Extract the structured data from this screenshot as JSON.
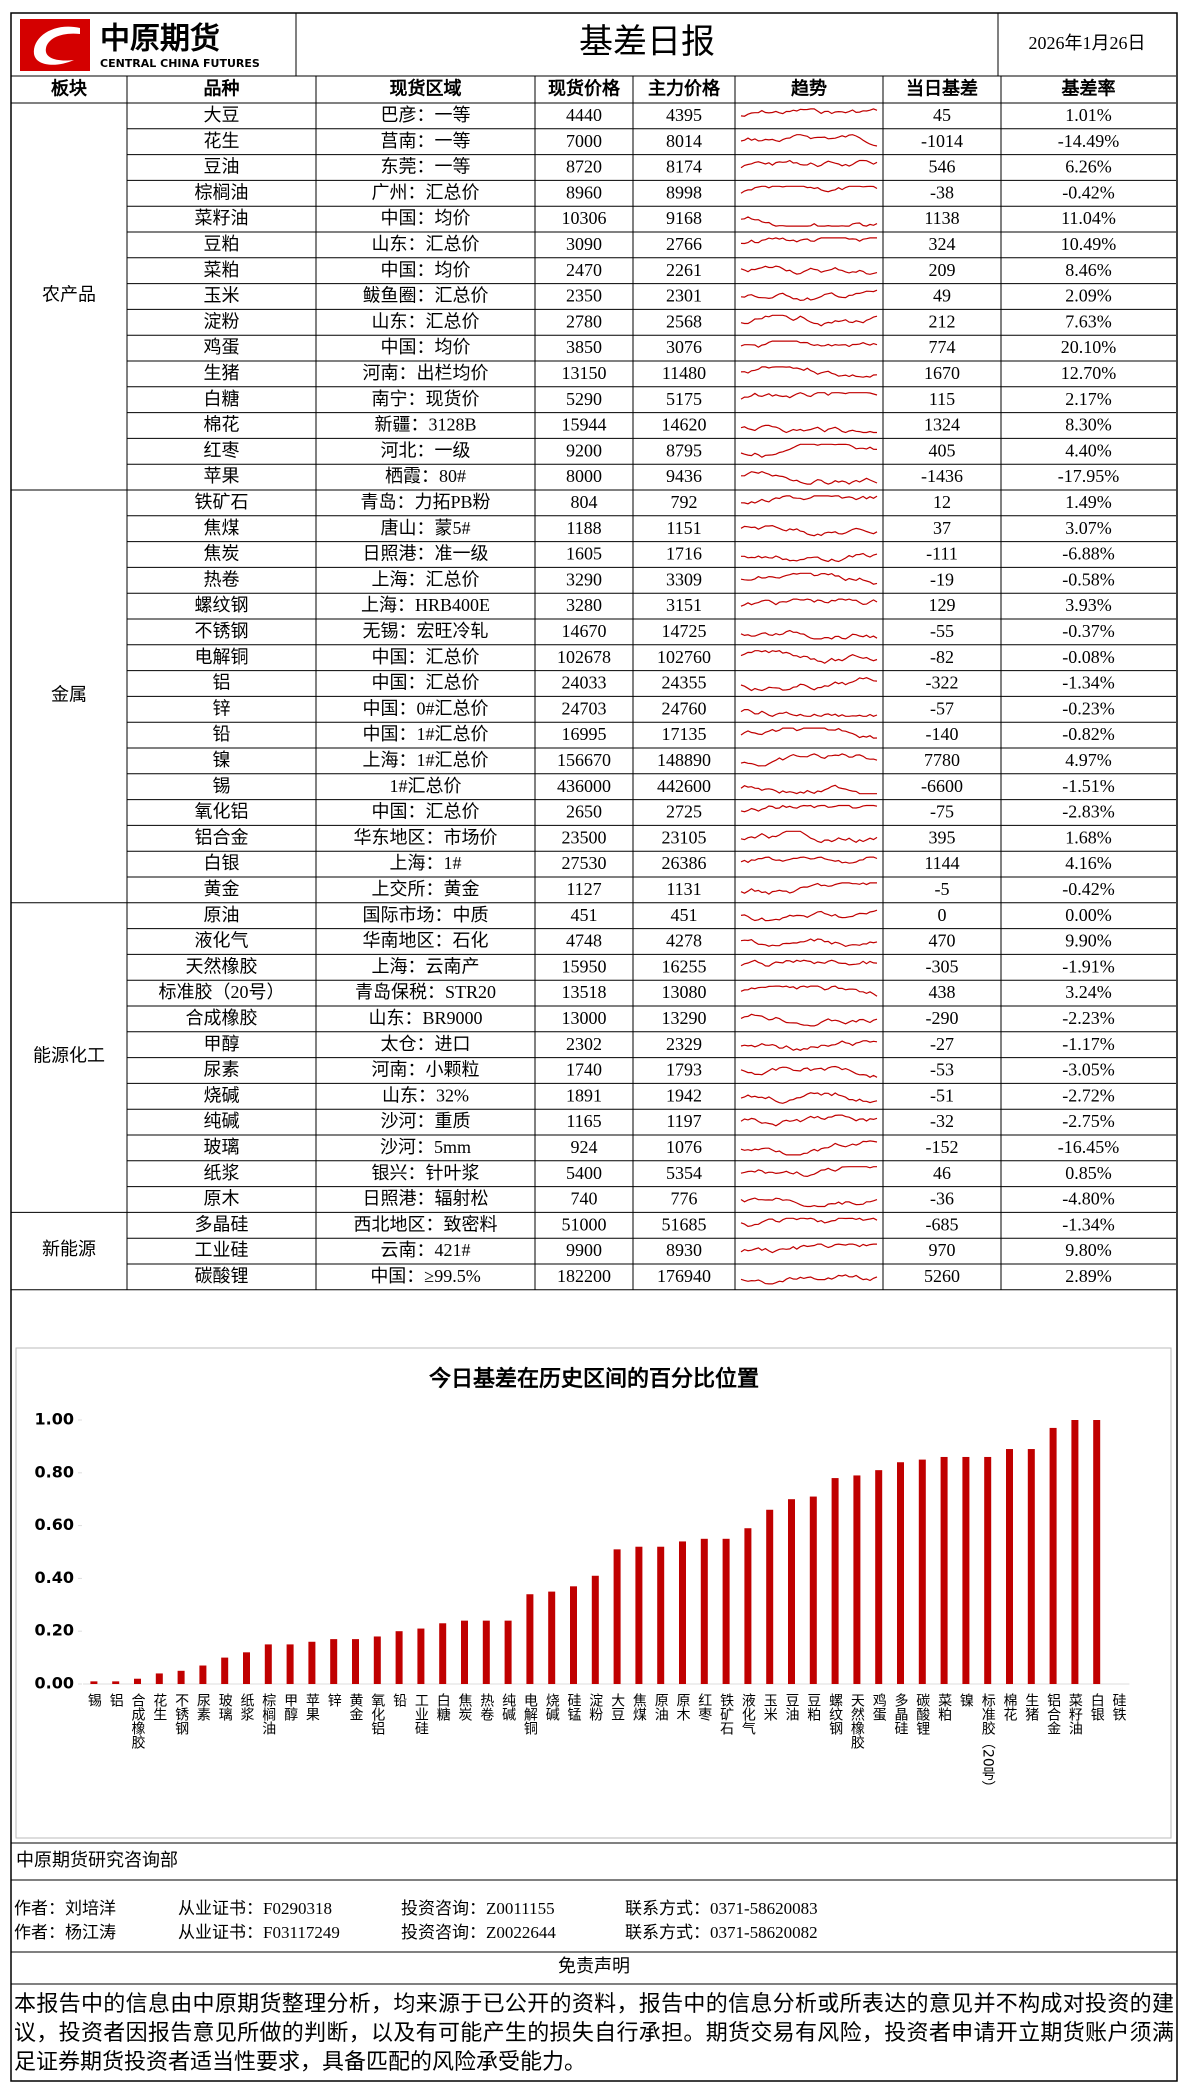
{
  "header": {
    "logo_cn": "中原期货",
    "logo_en": "CENTRAL CHINA FUTURES",
    "title": "基差日报",
    "date": "2026年1月26日"
  },
  "table": {
    "header": [
      "板块",
      "品种",
      "现货区域",
      "现货价格",
      "主力价格",
      "趋势",
      "当日基差",
      "基差率"
    ],
    "groups": [
      {
        "name": "农产品",
        "rows": [
          [
            "大豆",
            "巴彦：一等",
            4440,
            4395,
            45,
            "1.01%"
          ],
          [
            "花生",
            "莒南：一等",
            7000,
            8014,
            -1014,
            "-14.49%"
          ],
          [
            "豆油",
            "东莞：一等",
            8720,
            8174,
            546,
            "6.26%"
          ],
          [
            "棕榈油",
            "广州：汇总价",
            8960,
            8998,
            -38,
            "-0.42%"
          ],
          [
            "菜籽油",
            "中国：均价",
            10306,
            9168,
            1138,
            "11.04%"
          ],
          [
            "豆粕",
            "山东：汇总价",
            3090,
            2766,
            324,
            "10.49%"
          ],
          [
            "菜粕",
            "中国：均价",
            2470,
            2261,
            209,
            "8.46%"
          ],
          [
            "玉米",
            "鲅鱼圈：汇总价",
            2350,
            2301,
            49,
            "2.09%"
          ],
          [
            "淀粉",
            "山东：汇总价",
            2780,
            2568,
            212,
            "7.63%"
          ],
          [
            "鸡蛋",
            "中国：均价",
            3850,
            3076,
            774,
            "20.10%"
          ],
          [
            "生猪",
            "河南：出栏均价",
            13150,
            11480,
            1670,
            "12.70%"
          ],
          [
            "白糖",
            "南宁：现货价",
            5290,
            5175,
            115,
            "2.17%"
          ],
          [
            "棉花",
            "新疆：3128B",
            15944,
            14620,
            1324,
            "8.30%"
          ],
          [
            "红枣",
            "河北：一级",
            9200,
            8795,
            405,
            "4.40%"
          ],
          [
            "苹果",
            "栖霞：80#",
            8000,
            9436,
            -1436,
            "-17.95%"
          ]
        ]
      },
      {
        "name": "金属",
        "rows": [
          [
            "铁矿石",
            "青岛：力拓PB粉",
            804,
            792,
            12,
            "1.49%"
          ],
          [
            "焦煤",
            "唐山：蒙5#",
            1188,
            1151,
            37,
            "3.07%"
          ],
          [
            "焦炭",
            "日照港：准一级",
            1605,
            1716,
            -111,
            "-6.88%"
          ],
          [
            "热卷",
            "上海：汇总价",
            3290,
            3309,
            -19,
            "-0.58%"
          ],
          [
            "螺纹钢",
            "上海：HRB400E",
            3280,
            3151,
            129,
            "3.93%"
          ],
          [
            "不锈钢",
            "无锡：宏旺冷轧",
            14670,
            14725,
            -55,
            "-0.37%"
          ],
          [
            "电解铜",
            "中国：汇总价",
            102678,
            102760,
            -82,
            "-0.08%"
          ],
          [
            "铝",
            "中国：汇总价",
            24033,
            24355,
            -322,
            "-1.34%"
          ],
          [
            "锌",
            "中国：0#汇总价",
            24703,
            24760,
            -57,
            "-0.23%"
          ],
          [
            "铅",
            "中国：1#汇总价",
            16995,
            17135,
            -140,
            "-0.82%"
          ],
          [
            "镍",
            "上海：1#汇总价",
            156670,
            148890,
            7780,
            "4.97%"
          ],
          [
            "锡",
            "1#汇总价",
            436000,
            442600,
            -6600,
            "-1.51%"
          ],
          [
            "氧化铝",
            "中国：汇总价",
            2650,
            2725,
            -75,
            "-2.83%"
          ],
          [
            "铝合金",
            "华东地区：市场价",
            23500,
            23105,
            395,
            "1.68%"
          ],
          [
            "白银",
            "上海：1#",
            27530,
            26386,
            1144,
            "4.16%"
          ],
          [
            "黄金",
            "上交所：黄金",
            1127,
            1131,
            -5,
            "-0.42%"
          ]
        ]
      },
      {
        "name": "能源化工",
        "rows": [
          [
            "原油",
            "国际市场：中质",
            451,
            451,
            0,
            "0.00%"
          ],
          [
            "液化气",
            "华南地区：石化",
            4748,
            4278,
            470,
            "9.90%"
          ],
          [
            "天然橡胶",
            "上海：云南产",
            15950,
            16255,
            -305,
            "-1.91%"
          ],
          [
            "标准胶（20号）",
            "青岛保税：STR20",
            13518,
            13080,
            438,
            "3.24%"
          ],
          [
            "合成橡胶",
            "山东：BR9000",
            13000,
            13290,
            -290,
            "-2.23%"
          ],
          [
            "甲醇",
            "太仓：进口",
            2302,
            2329,
            -27,
            "-1.17%"
          ],
          [
            "尿素",
            "河南：小颗粒",
            1740,
            1793,
            -53,
            "-3.05%"
          ],
          [
            "烧碱",
            "山东：32%",
            1891,
            1942,
            -51,
            "-2.72%"
          ],
          [
            "纯碱",
            "沙河：重质",
            1165,
            1197,
            -32,
            "-2.75%"
          ],
          [
            "玻璃",
            "沙河：5mm",
            924,
            1076,
            -152,
            "-16.45%"
          ],
          [
            "纸浆",
            "银兴：针叶浆",
            5400,
            5354,
            46,
            "0.85%"
          ],
          [
            "原木",
            "日照港：辐射松",
            740,
            776,
            -36,
            "-4.80%"
          ]
        ]
      },
      {
        "name": "新能源",
        "rows": [
          [
            "多晶硅",
            "西北地区：致密料",
            51000,
            51685,
            -685,
            "-1.34%"
          ],
          [
            "工业硅",
            "云南：421#",
            9900,
            8930,
            970,
            "9.80%"
          ],
          [
            "碳酸锂",
            "中国：≥99.5%",
            182200,
            176940,
            5260,
            "2.89%"
          ]
        ]
      }
    ]
  },
  "chart_data": {
    "type": "bar",
    "title": "今日基差在历史区间的百分比位置",
    "categories": [
      "锡",
      "铝",
      "合成橡胶",
      "花生",
      "不锈钢",
      "尿素",
      "玻璃",
      "纸浆",
      "棕榈油",
      "甲醇",
      "苹果",
      "锌",
      "黄金",
      "氧化铝",
      "铅",
      "工业硅",
      "白糖",
      "焦炭",
      "热卷",
      "纯碱",
      "电解铜",
      "烧碱",
      "硅锰",
      "淀粉",
      "大豆",
      "焦煤",
      "原油",
      "原木",
      "红枣",
      "铁矿石",
      "液化气",
      "玉米",
      "豆油",
      "豆粕",
      "螺纹钢",
      "天然橡胶",
      "鸡蛋",
      "多晶硅",
      "碳酸锂",
      "菜粕",
      "镍",
      "标准胶（20号）",
      "棉花",
      "生猪",
      "铝合金",
      "菜籽油",
      "白银",
      "硅铁"
    ],
    "values": [
      0.01,
      0.01,
      0.02,
      0.04,
      0.05,
      0.07,
      0.1,
      0.12,
      0.15,
      0.15,
      0.16,
      0.17,
      0.17,
      0.18,
      0.2,
      0.21,
      0.23,
      0.24,
      0.24,
      0.24,
      0.34,
      0.35,
      0.37,
      0.41,
      0.51,
      0.52,
      0.52,
      0.54,
      0.55,
      0.55,
      0.59,
      0.66,
      0.7,
      0.71,
      0.78,
      0.79,
      0.81,
      0.84,
      0.85,
      0.86,
      0.86,
      0.86,
      0.89,
      0.89,
      0.97,
      1.0,
      1.0,
      0
    ],
    "color": "#c00000",
    "ylim": [
      0,
      1
    ],
    "yticks": [
      {
        "value": 0,
        "label": "0.00"
      },
      {
        "value": 0.2,
        "label": "0.20"
      },
      {
        "value": 0.4,
        "label": "0.40"
      },
      {
        "value": 0.6,
        "label": "0.60"
      },
      {
        "value": 0.8,
        "label": "0.80"
      },
      {
        "value": 1,
        "label": "1.00"
      }
    ]
  },
  "footer": {
    "dept": "中原期货研究咨询部",
    "authors": [
      [
        "作者：刘培洋",
        "从业证书：F0290318",
        "投资咨询：Z0011155",
        "联系方式：0371-58620083"
      ],
      [
        "作者：杨江涛",
        "从业证书：F03117249",
        "投资咨询：Z0022644",
        "联系方式：0371-58620082"
      ]
    ],
    "disclaimer_title": "免责声明",
    "disclaimer": "本报告中的信息由中原期货整理分析，均来源于已公开的资料，报告中的信息分析或所表达的意见并不构成对投资的建议，投资者因报告意见所做的判断，以及有可能产生的损失自行承担。期货交易有风险，投资者申请开立期货账户须满足证券期货投资者适当性要求，具备匹配的风险承受能力。"
  }
}
